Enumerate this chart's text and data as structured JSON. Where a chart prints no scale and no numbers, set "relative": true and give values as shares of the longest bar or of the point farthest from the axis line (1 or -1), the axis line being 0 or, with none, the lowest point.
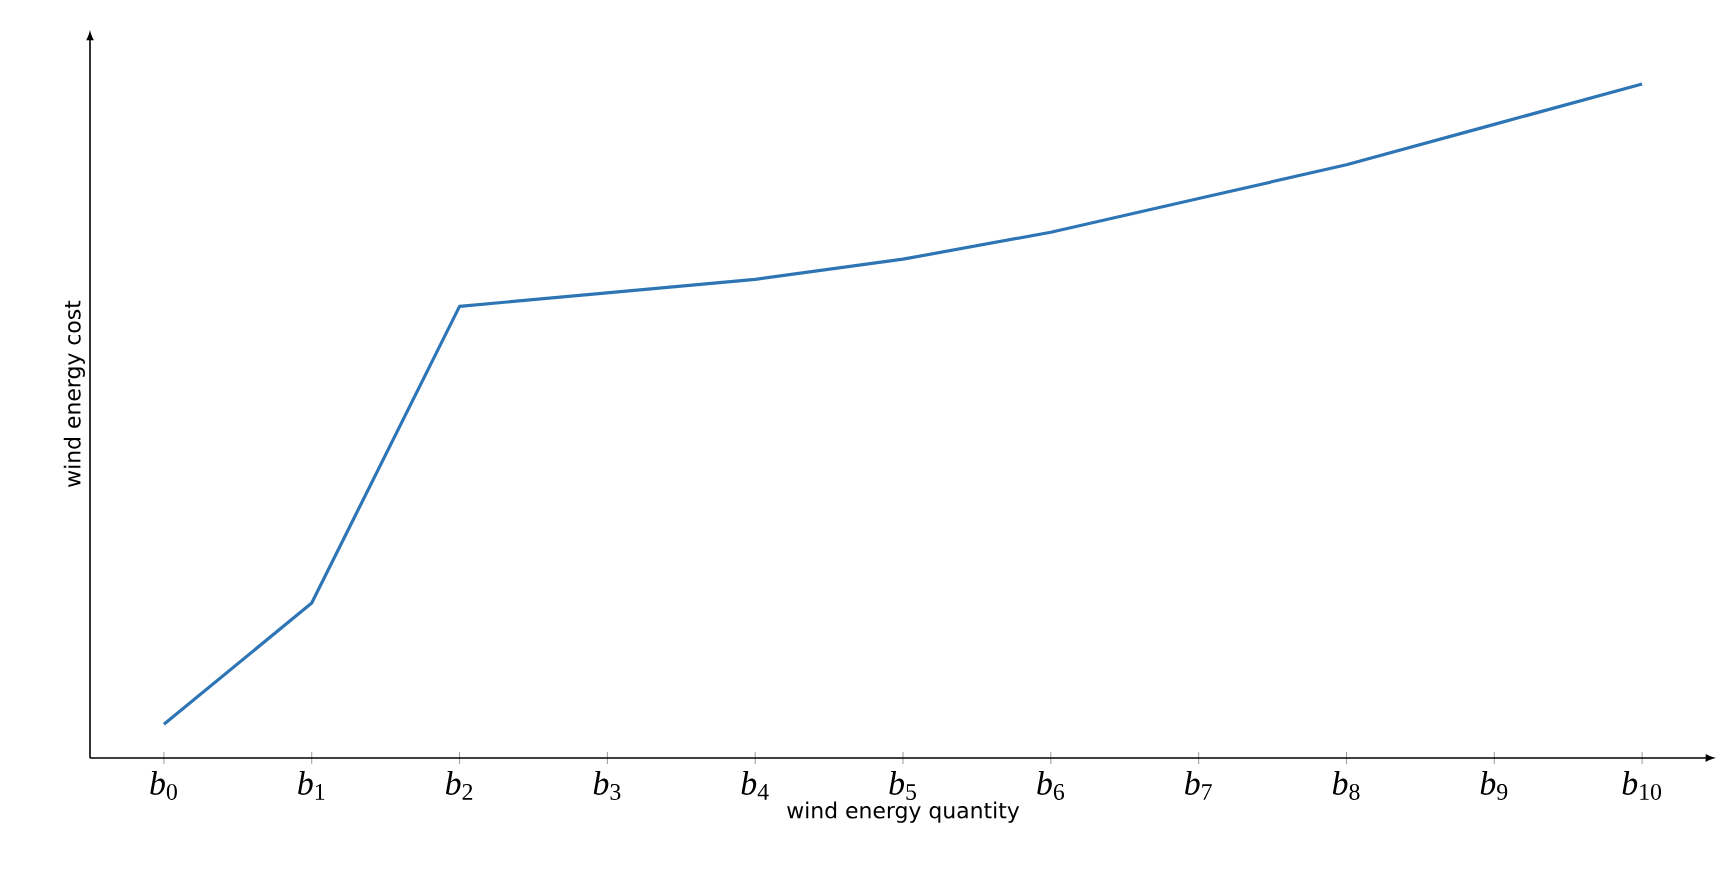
{
  "chart_data": {
    "type": "line",
    "relative": true,
    "xlabel": "wind energy quantity",
    "ylabel": "wind energy cost",
    "categories": [
      "*b*$_{0}$",
      "*b*$_{1}$",
      "*b*$_{2}$",
      "*b*$_{3}$",
      "*b*$_{4}$",
      "*b*$_{5}$",
      "*b*$_{6}$",
      "*b*$_{7}$",
      "*b*$_{8}$",
      "*b*$_{9}$",
      "*b*$_{10}$"
    ],
    "series": [
      {
        "color": "#2e75b6",
        "values": [
          0.05,
          0.23,
          0.67,
          0.69,
          0.71,
          0.74,
          0.78,
          0.83,
          0.88,
          0.94,
          1
        ]
      }
    ],
    "marker": "none",
    "line_style": "solid"
  }
}
